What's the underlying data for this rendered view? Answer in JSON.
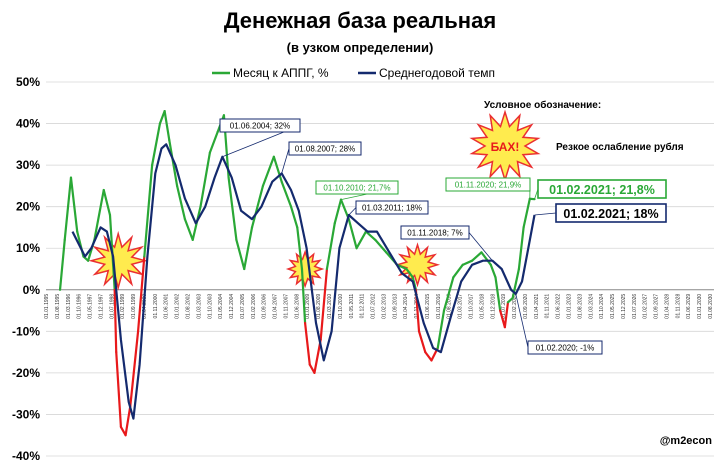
{
  "chart_data": {
    "type": "line",
    "title": "Денежная база реальная",
    "subtitle": "(в узком определении)",
    "ylim": [
      -40,
      50
    ],
    "yticks": [
      "50%",
      "40%",
      "30%",
      "20%",
      "10%",
      "0%",
      "-10%",
      "-20%",
      "-30%",
      "-40%"
    ],
    "grid": true,
    "legend_position": "top",
    "x_start": "1995-01",
    "x_end": "2030-09",
    "series": [
      {
        "name": "Месяц к АППГ, %",
        "color": "#2aa836",
        "crisis_color": "#e8191b",
        "points": [
          [
            "1995-10",
            0
          ],
          [
            "1996-01",
            12
          ],
          [
            "1996-05",
            27
          ],
          [
            "1996-09",
            14
          ],
          [
            "1997-01",
            8
          ],
          [
            "1997-04",
            7
          ],
          [
            "1997-08",
            12
          ],
          [
            "1998-02",
            24
          ],
          [
            "1998-06",
            18
          ],
          [
            "1998-09",
            0
          ],
          [
            "1998-10",
            -15
          ],
          [
            "1999-01",
            -33
          ],
          [
            "1999-04",
            -35
          ],
          [
            "1999-07",
            -28
          ],
          [
            "1999-12",
            -10
          ],
          [
            "2000-04",
            8
          ],
          [
            "2000-09",
            30
          ],
          [
            "2001-02",
            40
          ],
          [
            "2001-05",
            43
          ],
          [
            "2001-08",
            36
          ],
          [
            "2002-01",
            25
          ],
          [
            "2002-06",
            17
          ],
          [
            "2002-11",
            12
          ],
          [
            "2003-04",
            20
          ],
          [
            "2003-10",
            33
          ],
          [
            "2004-03",
            38
          ],
          [
            "2004-07",
            42
          ],
          [
            "2004-10",
            27
          ],
          [
            "2005-03",
            12
          ],
          [
            "2005-08",
            5
          ],
          [
            "2006-01",
            15
          ],
          [
            "2006-08",
            25
          ],
          [
            "2007-03",
            32
          ],
          [
            "2007-08",
            26
          ],
          [
            "2008-02",
            20
          ],
          [
            "2008-06",
            15
          ],
          [
            "2008-09",
            5
          ],
          [
            "2008-11",
            -8
          ],
          [
            "2009-02",
            -18
          ],
          [
            "2009-05",
            -20
          ],
          [
            "2009-09",
            -12
          ],
          [
            "2010-01",
            5
          ],
          [
            "2010-06",
            16
          ],
          [
            "2010-10",
            21.7
          ],
          [
            "2011-03",
            17
          ],
          [
            "2011-08",
            10
          ],
          [
            "2012-02",
            14
          ],
          [
            "2012-08",
            12
          ],
          [
            "2013-03",
            9
          ],
          [
            "2013-10",
            6
          ],
          [
            "2014-04",
            5
          ],
          [
            "2014-08",
            3
          ],
          [
            "2014-10",
            0
          ],
          [
            "2014-12",
            -10
          ],
          [
            "2015-04",
            -15
          ],
          [
            "2015-08",
            -17
          ],
          [
            "2015-12",
            -14
          ],
          [
            "2016-04",
            -5
          ],
          [
            "2016-10",
            3
          ],
          [
            "2017-04",
            6
          ],
          [
            "2017-10",
            7
          ],
          [
            "2018-04",
            9
          ],
          [
            "2018-10",
            6
          ],
          [
            "2019-01",
            3
          ],
          [
            "2019-04",
            -5
          ],
          [
            "2019-07",
            -9
          ],
          [
            "2019-09",
            -3
          ],
          [
            "2019-12",
            -2
          ],
          [
            "2020-04",
            5
          ],
          [
            "2020-07",
            15
          ],
          [
            "2020-11",
            21.9
          ],
          [
            "2021-02",
            21.8
          ]
        ]
      },
      {
        "name": "Среднегодовой темп",
        "color": "#142a6e",
        "points": [
          [
            "1996-06",
            14
          ],
          [
            "1996-10",
            11
          ],
          [
            "1997-02",
            8
          ],
          [
            "1997-06",
            10
          ],
          [
            "1997-12",
            15
          ],
          [
            "1998-04",
            14
          ],
          [
            "1998-08",
            8
          ],
          [
            "1999-01",
            -12
          ],
          [
            "1999-06",
            -27
          ],
          [
            "1999-09",
            -31
          ],
          [
            "2000-01",
            -18
          ],
          [
            "2000-06",
            8
          ],
          [
            "2000-11",
            28
          ],
          [
            "2001-03",
            34
          ],
          [
            "2001-06",
            35
          ],
          [
            "2001-12",
            30
          ],
          [
            "2002-06",
            22
          ],
          [
            "2003-01",
            16
          ],
          [
            "2003-07",
            20
          ],
          [
            "2004-01",
            27
          ],
          [
            "2004-06",
            32
          ],
          [
            "2004-12",
            27
          ],
          [
            "2005-06",
            19
          ],
          [
            "2006-01",
            17
          ],
          [
            "2006-07",
            20
          ],
          [
            "2007-02",
            26
          ],
          [
            "2007-08",
            28
          ],
          [
            "2008-02",
            24
          ],
          [
            "2008-07",
            19
          ],
          [
            "2008-12",
            10
          ],
          [
            "2009-06",
            -8
          ],
          [
            "2009-11",
            -17
          ],
          [
            "2010-04",
            -10
          ],
          [
            "2010-09",
            10
          ],
          [
            "2011-03",
            18
          ],
          [
            "2011-09",
            16
          ],
          [
            "2012-03",
            14
          ],
          [
            "2012-09",
            14
          ],
          [
            "2013-05",
            9
          ],
          [
            "2014-01",
            4
          ],
          [
            "2014-08",
            2
          ],
          [
            "2015-03",
            -8
          ],
          [
            "2015-09",
            -14
          ],
          [
            "2016-02",
            -15
          ],
          [
            "2016-08",
            -7
          ],
          [
            "2017-03",
            2
          ],
          [
            "2017-10",
            6
          ],
          [
            "2018-05",
            7
          ],
          [
            "2018-11",
            7
          ],
          [
            "2019-05",
            5
          ],
          [
            "2019-11",
            0
          ],
          [
            "2020-02",
            -1
          ],
          [
            "2020-06",
            2
          ],
          [
            "2020-10",
            10
          ],
          [
            "2021-02",
            18
          ]
        ]
      }
    ],
    "annotations": [
      {
        "text": "01.06.2004; 32%",
        "style": "navy",
        "at": [
          "2004-06",
          32
        ]
      },
      {
        "text": "01.08.2007; 28%",
        "style": "navy",
        "at": [
          "2007-08",
          28
        ]
      },
      {
        "text": "01.10.2010; 21,7%",
        "style": "green",
        "at": [
          "2010-10",
          21.7
        ]
      },
      {
        "text": "01.03.2011; 18%",
        "style": "navy",
        "at": [
          "2011-03",
          18
        ]
      },
      {
        "text": "01.11.2018; 7%",
        "style": "navy",
        "at": [
          "2018-11",
          7
        ]
      },
      {
        "text": "01.11.2020; 21,9%",
        "style": "green",
        "at": [
          "2020-11",
          21.9
        ]
      },
      {
        "text": "01.02.2021; 21,8%",
        "style": "green-big",
        "at": [
          "2021-02",
          21.8
        ]
      },
      {
        "text": "01.02.2021; 18%",
        "style": "navy-big",
        "at": [
          "2021-02",
          18
        ]
      },
      {
        "text": "01.02.2020; -1%",
        "style": "navy",
        "at": [
          "2020-02",
          -1
        ]
      }
    ],
    "x_tick_labels": [
      "01.01.1995",
      "01.08.1995",
      "01.03.1996",
      "01.10.1996",
      "01.05.1997",
      "01.12.1997",
      "01.07.1998",
      "01.02.1999",
      "01.09.1999",
      "01.04.2000",
      "01.11.2000",
      "01.06.2001",
      "01.01.2002",
      "01.08.2002",
      "01.03.2003",
      "01.10.2003",
      "01.05.2004",
      "01.12.2004",
      "01.07.2005",
      "01.02.2006",
      "01.09.2006",
      "01.04.2007",
      "01.11.2007",
      "01.06.2008",
      "01.01.2009",
      "01.08.2009",
      "01.03.2010",
      "01.10.2010",
      "01.05.2011",
      "01.12.2011",
      "01.07.2012",
      "01.02.2013",
      "01.09.2013",
      "01.04.2014",
      "01.11.2014",
      "01.06.2015",
      "01.01.2016",
      "01.08.2016",
      "01.03.2017",
      "01.10.2017",
      "01.05.2018",
      "01.12.2018",
      "01.07.2019",
      "01.02.2020",
      "01.09.2020",
      "01.04.2021",
      "01.11.2021",
      "01.06.2022",
      "01.01.2023",
      "01.08.2023",
      "01.03.2024",
      "01.10.2024",
      "01.05.2025",
      "01.12.2025",
      "01.07.2026",
      "01.02.2027",
      "01.09.2027",
      "01.04.2028",
      "01.11.2028",
      "01.06.2029",
      "01.01.2030",
      "01.08.2030"
    ],
    "legend_note": {
      "heading": "Условное обозначение:",
      "burst_label": "БАХ!",
      "burst_desc": "Резкое ослабление рубля"
    },
    "crisis_bursts": [
      "1998-10",
      "2008-11",
      "2014-11"
    ],
    "watermark": "@m2econ"
  }
}
